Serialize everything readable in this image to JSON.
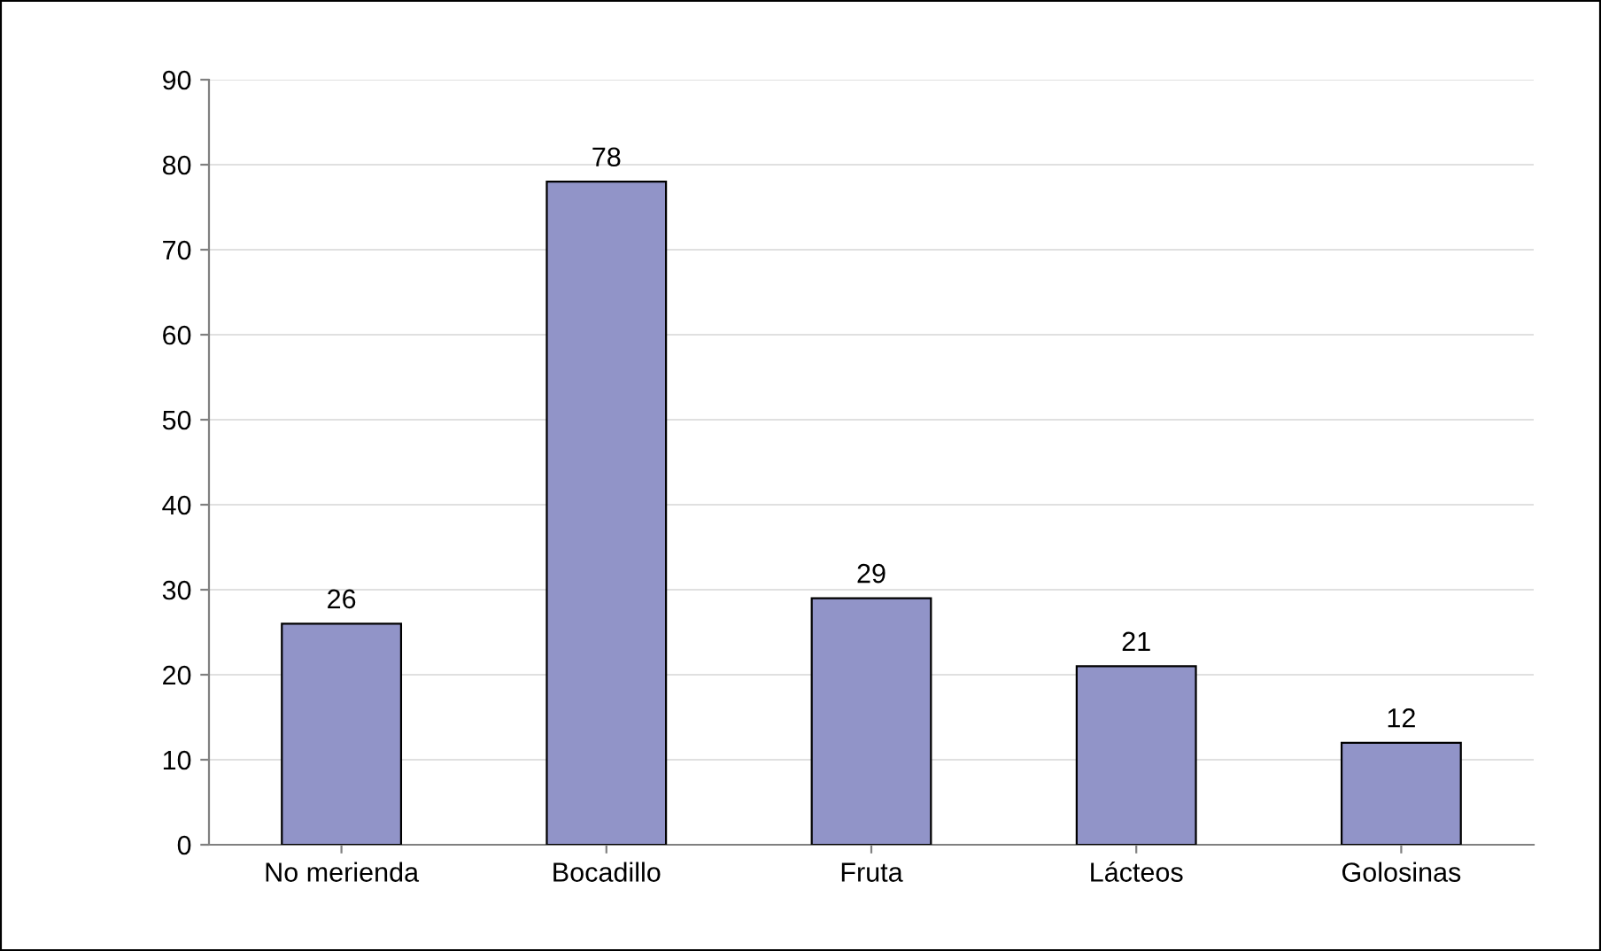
{
  "chart_data": {
    "type": "bar",
    "categories": [
      "No merienda",
      "Bocadillo",
      "Fruta",
      "Lácteos",
      "Golosinas"
    ],
    "values": [
      26,
      78,
      29,
      21,
      12
    ],
    "color": "#9194c8",
    "ylim": [
      0,
      90
    ],
    "yticks": [
      0,
      10,
      20,
      30,
      40,
      50,
      60,
      70,
      80,
      90
    ],
    "grid": "y",
    "data_labels": true,
    "legend": false
  }
}
